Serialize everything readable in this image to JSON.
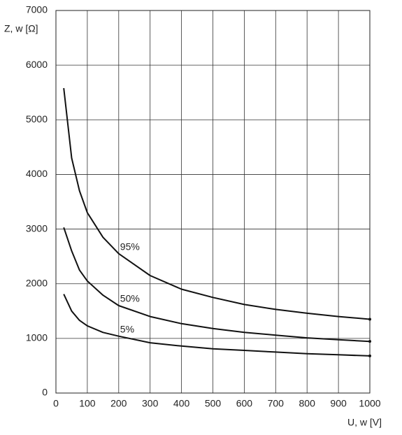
{
  "chart_data": {
    "type": "line",
    "x_label": "U, w [V]",
    "y_label": "Z, w [Ω]",
    "xlim": [
      0,
      1000
    ],
    "xticks": [
      0,
      100,
      200,
      300,
      400,
      500,
      600,
      700,
      800,
      900,
      1000
    ],
    "ylim": [
      0,
      7000
    ],
    "yticks": [
      0,
      1000,
      2000,
      3000,
      4000,
      5000,
      6000,
      7000
    ],
    "grid": true,
    "x": [
      25,
      50,
      75,
      100,
      150,
      200,
      300,
      400,
      500,
      600,
      700,
      800,
      900,
      1000
    ],
    "series": [
      {
        "name": "95%",
        "color": "#111111",
        "values": [
          5580,
          4300,
          3700,
          3300,
          2850,
          2550,
          2150,
          1900,
          1750,
          1620,
          1530,
          1460,
          1400,
          1350
        ]
      },
      {
        "name": "50%",
        "color": "#111111",
        "values": [
          3030,
          2600,
          2250,
          2050,
          1790,
          1600,
          1400,
          1270,
          1180,
          1110,
          1060,
          1010,
          975,
          945
        ]
      },
      {
        "name": "5%",
        "color": "#111111",
        "values": [
          1810,
          1500,
          1330,
          1230,
          1110,
          1040,
          920,
          860,
          810,
          780,
          750,
          720,
          700,
          680
        ]
      }
    ]
  }
}
